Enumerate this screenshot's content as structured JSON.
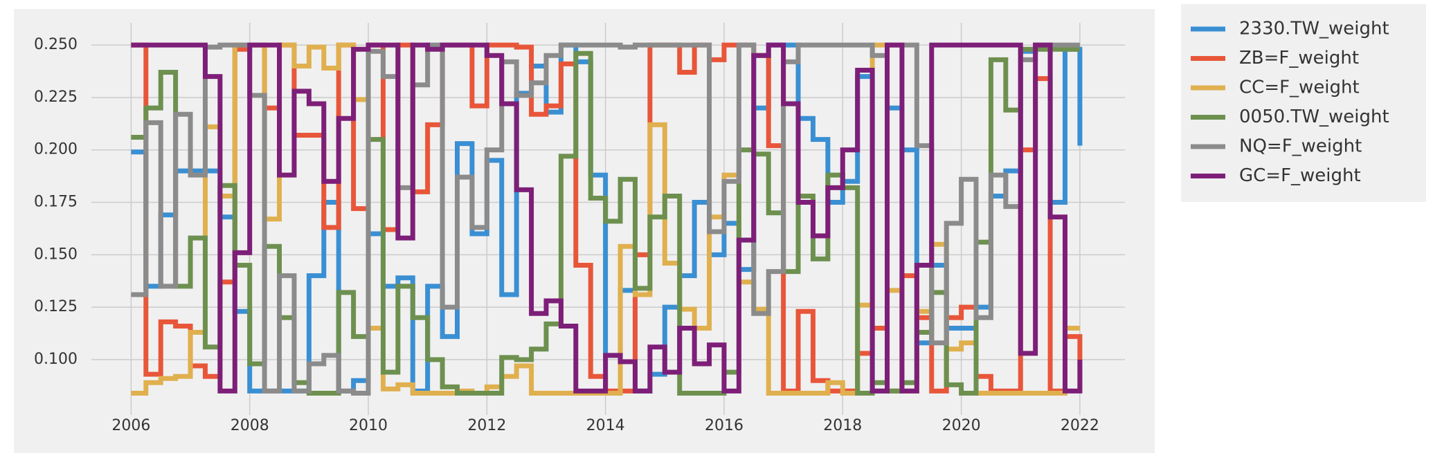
{
  "chart_data": {
    "type": "step",
    "x": [
      2006.0,
      2006.25,
      2006.5,
      2006.75,
      2007.0,
      2007.25,
      2007.5,
      2007.75,
      2008.0,
      2008.25,
      2008.5,
      2008.75,
      2009.0,
      2009.25,
      2009.5,
      2009.75,
      2010.0,
      2010.25,
      2010.5,
      2010.75,
      2011.0,
      2011.25,
      2011.5,
      2011.75,
      2012.0,
      2012.25,
      2012.5,
      2012.75,
      2013.0,
      2013.25,
      2013.5,
      2013.75,
      2014.0,
      2014.25,
      2014.5,
      2014.75,
      2015.0,
      2015.25,
      2015.5,
      2015.75,
      2016.0,
      2016.25,
      2016.5,
      2016.75,
      2017.0,
      2017.25,
      2017.5,
      2017.75,
      2018.0,
      2018.25,
      2018.5,
      2018.75,
      2019.0,
      2019.25,
      2019.5,
      2019.75,
      2020.0,
      2020.25,
      2020.5,
      2020.75,
      2021.0,
      2021.25,
      2021.5,
      2021.75,
      2022.0
    ],
    "series": [
      {
        "name": "2330.TW_weight",
        "color": "#3a8fd3",
        "values": [
          0.199,
          0.135,
          0.169,
          0.19,
          0.19,
          0.19,
          0.168,
          0.123,
          0.085,
          0.085,
          0.085,
          0.085,
          0.14,
          0.175,
          0.085,
          0.09,
          0.16,
          0.135,
          0.139,
          0.085,
          0.135,
          0.111,
          0.203,
          0.16,
          0.195,
          0.131,
          0.227,
          0.24,
          0.218,
          0.25,
          0.242,
          0.188,
          0.102,
          0.133,
          0.085,
          0.093,
          0.125,
          0.14,
          0.175,
          0.15,
          0.165,
          0.143,
          0.22,
          0.25,
          0.25,
          0.215,
          0.205,
          0.175,
          0.185,
          0.235,
          0.085,
          0.22,
          0.2,
          0.108,
          0.145,
          0.115,
          0.115,
          0.125,
          0.178,
          0.19,
          0.247,
          0.25,
          0.175,
          0.248,
          0.202
        ]
      },
      {
        "name": "ZB=F_weight",
        "color": "#e8563a",
        "values": [
          0.25,
          0.093,
          0.118,
          0.116,
          0.097,
          0.092,
          0.137,
          0.248,
          0.25,
          0.22,
          0.25,
          0.207,
          0.207,
          0.163,
          0.25,
          0.172,
          0.25,
          0.162,
          0.25,
          0.18,
          0.212,
          0.25,
          0.25,
          0.221,
          0.25,
          0.25,
          0.249,
          0.217,
          0.221,
          0.241,
          0.145,
          0.092,
          0.085,
          0.085,
          0.15,
          0.25,
          0.25,
          0.237,
          0.25,
          0.243,
          0.25,
          0.25,
          0.245,
          0.202,
          0.085,
          0.123,
          0.09,
          0.085,
          0.085,
          0.103,
          0.115,
          0.085,
          0.14,
          0.12,
          0.085,
          0.12,
          0.125,
          0.092,
          0.085,
          0.085,
          0.2,
          0.234,
          0.085,
          0.111,
          0.085
        ]
      },
      {
        "name": "CC=F_weight",
        "color": "#e0b04f",
        "values": [
          0.084,
          0.089,
          0.091,
          0.092,
          0.113,
          0.211,
          0.178,
          0.25,
          0.25,
          0.167,
          0.25,
          0.24,
          0.249,
          0.239,
          0.25,
          0.224,
          0.115,
          0.086,
          0.088,
          0.084,
          0.084,
          0.084,
          0.085,
          0.084,
          0.087,
          0.092,
          0.097,
          0.084,
          0.084,
          0.084,
          0.084,
          0.084,
          0.084,
          0.154,
          0.131,
          0.212,
          0.146,
          0.124,
          0.115,
          0.168,
          0.188,
          0.137,
          0.124,
          0.084,
          0.084,
          0.084,
          0.084,
          0.089,
          0.084,
          0.126,
          0.25,
          0.133,
          0.085,
          0.123,
          0.155,
          0.105,
          0.108,
          0.084,
          0.084,
          0.084,
          0.084,
          0.084,
          0.084,
          0.115,
          0.115
        ]
      },
      {
        "name": "0050.TW_weight",
        "color": "#6d904f",
        "values": [
          0.206,
          0.22,
          0.237,
          0.135,
          0.158,
          0.106,
          0.183,
          0.145,
          0.098,
          0.154,
          0.12,
          0.089,
          0.084,
          0.084,
          0.132,
          0.111,
          0.205,
          0.094,
          0.135,
          0.12,
          0.1,
          0.087,
          0.084,
          0.084,
          0.084,
          0.101,
          0.1,
          0.105,
          0.117,
          0.197,
          0.246,
          0.177,
          0.166,
          0.186,
          0.134,
          0.168,
          0.178,
          0.084,
          0.084,
          0.084,
          0.094,
          0.2,
          0.198,
          0.17,
          0.142,
          0.178,
          0.148,
          0.188,
          0.182,
          0.084,
          0.089,
          0.085,
          0.089,
          0.113,
          0.132,
          0.088,
          0.084,
          0.156,
          0.243,
          0.219,
          0.248,
          0.248,
          0.248,
          0.248,
          0.248
        ]
      },
      {
        "name": "NQ=F_weight",
        "color": "#8b8b8b",
        "values": [
          0.131,
          0.213,
          0.135,
          0.217,
          0.188,
          0.249,
          0.25,
          0.25,
          0.226,
          0.085,
          0.14,
          0.085,
          0.098,
          0.102,
          0.085,
          0.084,
          0.247,
          0.235,
          0.182,
          0.231,
          0.25,
          0.125,
          0.187,
          0.163,
          0.2,
          0.242,
          0.226,
          0.232,
          0.245,
          0.25,
          0.25,
          0.25,
          0.25,
          0.249,
          0.25,
          0.25,
          0.25,
          0.25,
          0.25,
          0.161,
          0.185,
          0.25,
          0.122,
          0.142,
          0.242,
          0.25,
          0.25,
          0.25,
          0.25,
          0.25,
          0.245,
          0.25,
          0.25,
          0.202,
          0.108,
          0.165,
          0.186,
          0.12,
          0.188,
          0.173,
          0.243,
          0.25,
          0.25,
          0.25,
          0.25
        ]
      },
      {
        "name": "GC=F_weight",
        "color": "#7d1f78",
        "values": [
          0.25,
          0.25,
          0.25,
          0.25,
          0.25,
          0.235,
          0.085,
          0.151,
          0.25,
          0.25,
          0.188,
          0.228,
          0.222,
          0.185,
          0.215,
          0.248,
          0.25,
          0.25,
          0.158,
          0.25,
          0.248,
          0.25,
          0.25,
          0.25,
          0.245,
          0.222,
          0.181,
          0.122,
          0.128,
          0.116,
          0.085,
          0.085,
          0.102,
          0.099,
          0.085,
          0.106,
          0.094,
          0.115,
          0.098,
          0.107,
          0.085,
          0.157,
          0.245,
          0.25,
          0.222,
          0.175,
          0.159,
          0.182,
          0.2,
          0.238,
          0.085,
          0.25,
          0.085,
          0.145,
          0.25,
          0.25,
          0.25,
          0.25,
          0.25,
          0.25,
          0.103,
          0.25,
          0.168,
          0.085,
          0.1
        ]
      }
    ],
    "xlim": [
      2005.33,
      2022.76
    ],
    "ylim": [
      0.0736,
      0.2606
    ],
    "xticks": [
      2006,
      2008,
      2010,
      2012,
      2014,
      2016,
      2018,
      2020,
      2022
    ],
    "yticks": [
      {
        "value": 0.1,
        "label": "0.100"
      },
      {
        "value": 0.125,
        "label": "0.125"
      },
      {
        "value": 0.15,
        "label": "0.150"
      },
      {
        "value": 0.175,
        "label": "0.175"
      },
      {
        "value": 0.2,
        "label": "0.200"
      },
      {
        "value": 0.225,
        "label": "0.225"
      },
      {
        "value": 0.25,
        "label": "0.250"
      }
    ],
    "grid": true,
    "legend": "outside upper right"
  }
}
